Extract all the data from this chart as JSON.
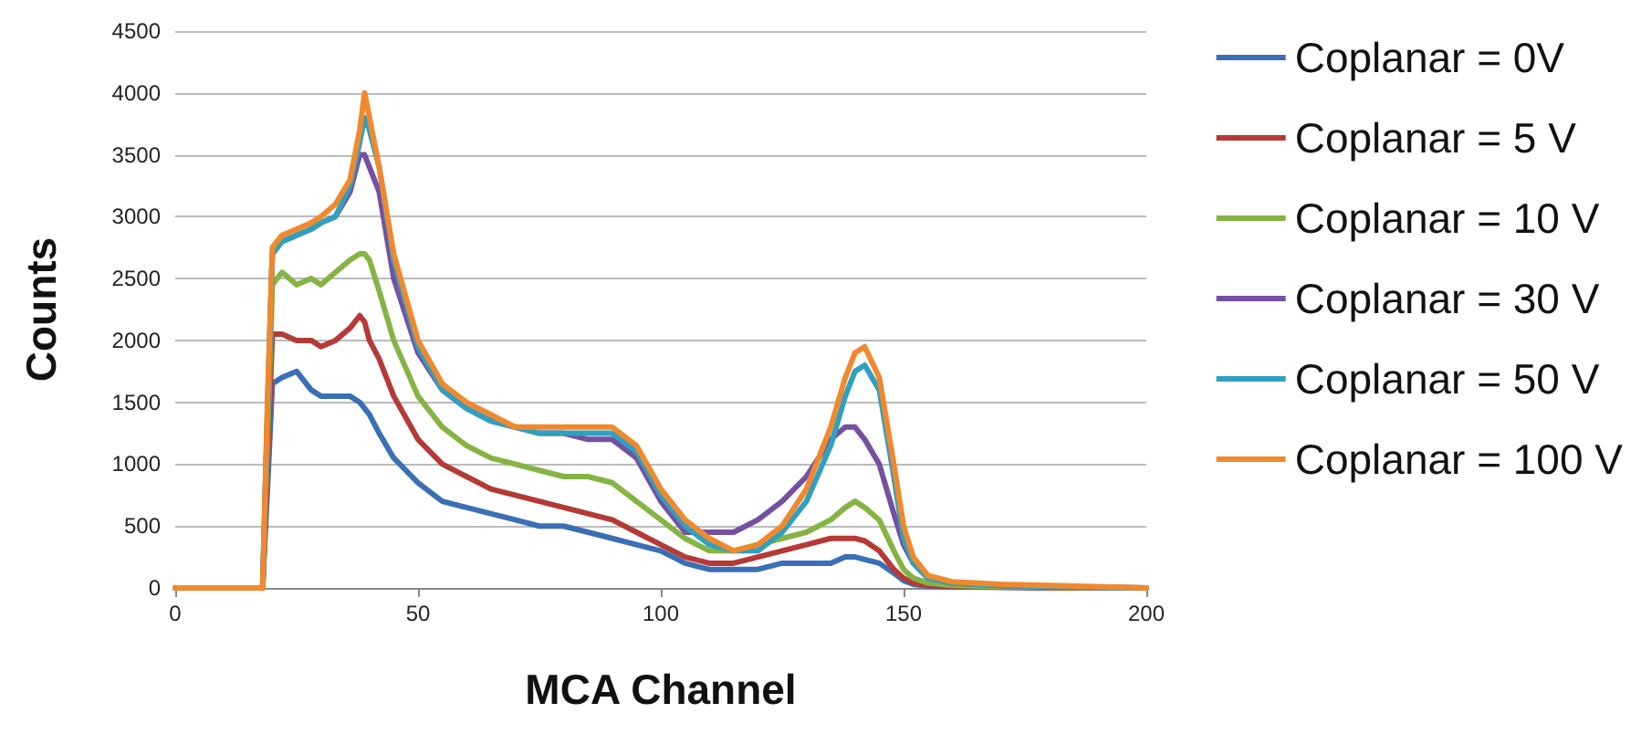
{
  "chart_data": {
    "type": "line",
    "xlabel": "MCA Channel",
    "ylabel": "Counts",
    "legend": "right",
    "grid": "y",
    "marker": "none",
    "line_style": "solid",
    "x": [
      0,
      18,
      19,
      20,
      22,
      25,
      28,
      30,
      33,
      36,
      38,
      39,
      40,
      42,
      45,
      50,
      55,
      60,
      65,
      70,
      75,
      80,
      85,
      90,
      95,
      100,
      105,
      110,
      115,
      120,
      125,
      130,
      135,
      138,
      140,
      142,
      145,
      148,
      150,
      152,
      155,
      160,
      170,
      180,
      200
    ],
    "xlim": [
      0,
      200
    ],
    "xticks": [
      0,
      50,
      100,
      150,
      200
    ],
    "ylim": [
      0,
      4500
    ],
    "yticks": [
      0,
      500,
      1000,
      1500,
      2000,
      2500,
      3000,
      3500,
      4000,
      4500
    ],
    "series": [
      {
        "name": "Coplanar = 0V",
        "color": "#3a6fb5",
        "values": [
          0,
          0,
          800,
          1650,
          1700,
          1750,
          1600,
          1550,
          1550,
          1550,
          1500,
          1450,
          1400,
          1250,
          1050,
          850,
          700,
          650,
          600,
          550,
          500,
          500,
          450,
          400,
          350,
          300,
          200,
          150,
          150,
          150,
          200,
          200,
          200,
          250,
          250,
          230,
          200,
          120,
          60,
          30,
          15,
          10,
          5,
          0,
          0
        ]
      },
      {
        "name": "Coplanar = 5 V",
        "color": "#b53a36",
        "values": [
          0,
          0,
          1000,
          2050,
          2050,
          2000,
          2000,
          1950,
          2000,
          2100,
          2200,
          2150,
          2000,
          1850,
          1550,
          1200,
          1000,
          900,
          800,
          750,
          700,
          650,
          600,
          550,
          450,
          350,
          250,
          200,
          200,
          250,
          300,
          350,
          400,
          400,
          400,
          380,
          300,
          150,
          80,
          40,
          20,
          10,
          5,
          0,
          0
        ]
      },
      {
        "name": "Coplanar = 10 V",
        "color": "#84b443",
        "values": [
          0,
          0,
          1200,
          2450,
          2550,
          2450,
          2500,
          2450,
          2550,
          2650,
          2700,
          2700,
          2650,
          2400,
          2000,
          1550,
          1300,
          1150,
          1050,
          1000,
          950,
          900,
          900,
          850,
          700,
          550,
          400,
          300,
          300,
          350,
          400,
          450,
          550,
          650,
          700,
          650,
          550,
          300,
          150,
          80,
          40,
          20,
          10,
          5,
          0
        ]
      },
      {
        "name": "Coplanar = 30 V",
        "color": "#7550a0",
        "values": [
          0,
          0,
          1400,
          2700,
          2800,
          2850,
          2900,
          2950,
          3000,
          3200,
          3500,
          3500,
          3400,
          3200,
          2500,
          1900,
          1600,
          1450,
          1350,
          1300,
          1250,
          1250,
          1200,
          1200,
          1050,
          700,
          450,
          450,
          450,
          550,
          700,
          900,
          1200,
          1300,
          1300,
          1200,
          1000,
          600,
          350,
          200,
          80,
          40,
          20,
          10,
          0
        ]
      },
      {
        "name": "Coplanar = 50 V",
        "color": "#30a0c0",
        "values": [
          0,
          0,
          1450,
          2700,
          2800,
          2850,
          2900,
          2950,
          3000,
          3250,
          3600,
          3800,
          3700,
          3400,
          2650,
          1950,
          1600,
          1450,
          1350,
          1300,
          1250,
          1250,
          1250,
          1250,
          1100,
          750,
          500,
          350,
          300,
          300,
          450,
          700,
          1150,
          1550,
          1750,
          1800,
          1600,
          900,
          400,
          200,
          80,
          40,
          20,
          10,
          0
        ]
      },
      {
        "name": "Coplanar = 100 V",
        "color": "#f0892e",
        "values": [
          0,
          0,
          1500,
          2750,
          2850,
          2900,
          2950,
          3000,
          3100,
          3300,
          3700,
          4000,
          3800,
          3400,
          2700,
          2000,
          1650,
          1500,
          1400,
          1300,
          1300,
          1300,
          1300,
          1300,
          1150,
          800,
          550,
          400,
          300,
          350,
          500,
          800,
          1300,
          1700,
          1900,
          1950,
          1700,
          1000,
          500,
          250,
          100,
          50,
          30,
          20,
          0
        ]
      }
    ]
  }
}
